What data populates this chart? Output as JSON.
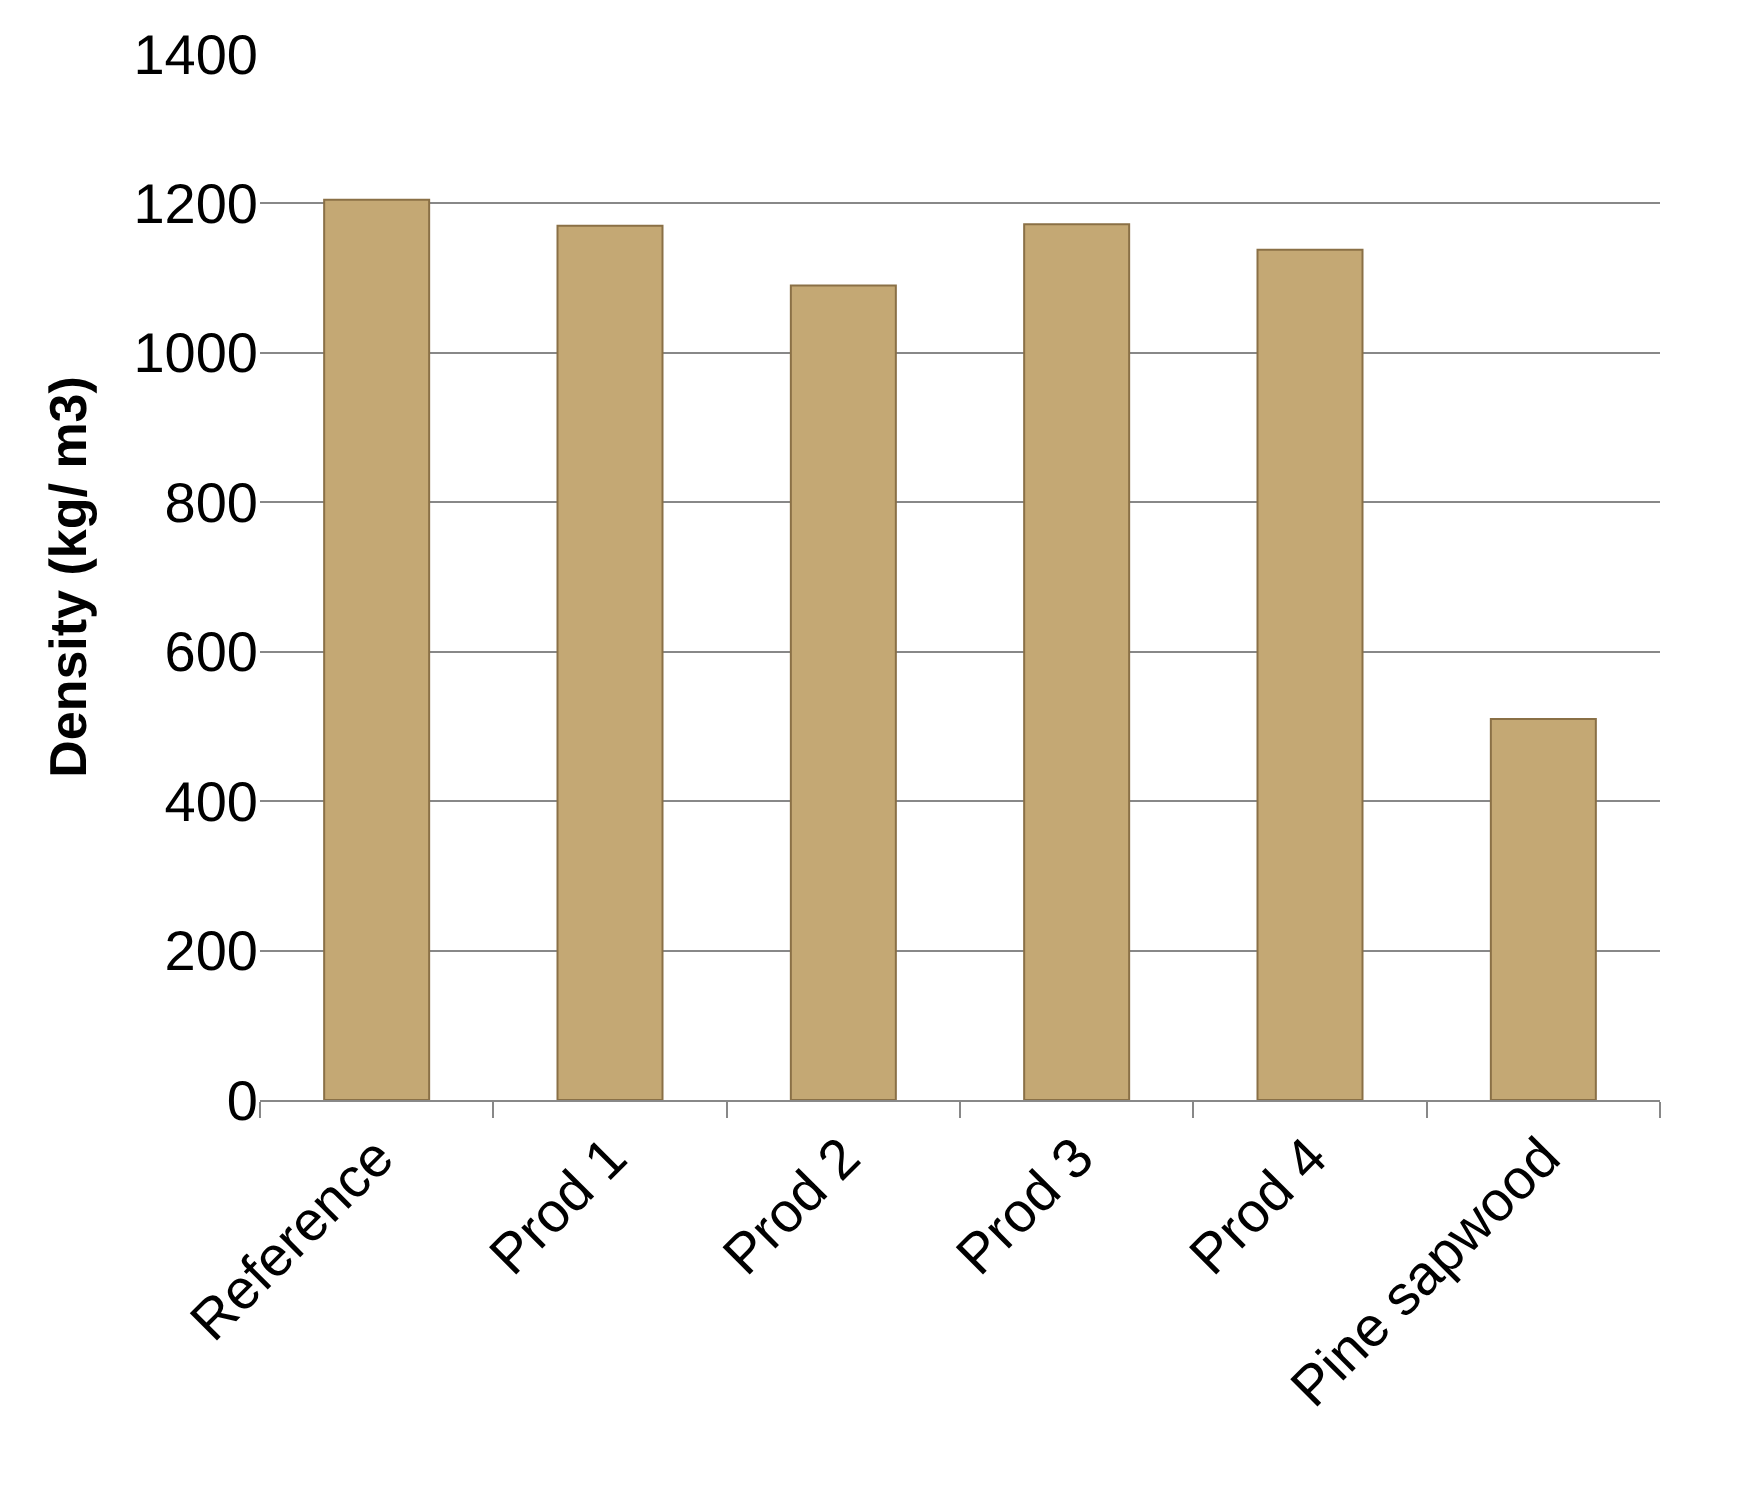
{
  "chart_data": {
    "type": "bar",
    "ylabel": "Density (kg/ m3)",
    "categories": [
      "Reference",
      "Prod 1",
      "Prod 2",
      "Prod 3",
      "Prod 4",
      "Pine sapwood"
    ],
    "values": [
      1205,
      1170,
      1090,
      1172,
      1138,
      510
    ],
    "color": "#c4a874",
    "ylim": [
      0,
      1400
    ],
    "yticks": [
      0,
      200,
      400,
      600,
      800,
      1000,
      1200,
      1400
    ],
    "grid": "y"
  }
}
